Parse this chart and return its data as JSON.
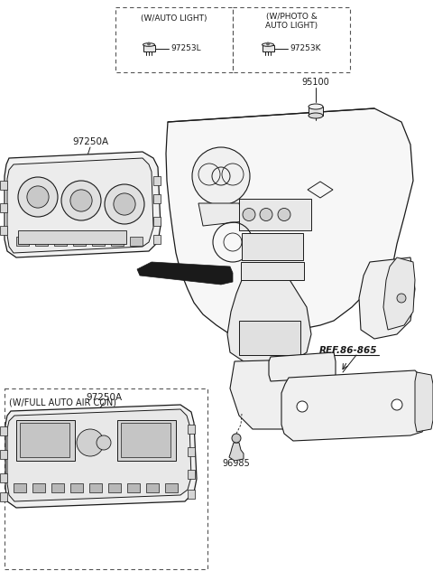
{
  "background_color": "#ffffff",
  "line_color": "#1a1a1a",
  "dashed_box_color": "#555555",
  "text_color": "#1a1a1a",
  "figsize": [
    4.8,
    6.42
  ],
  "dpi": 100,
  "labels": {
    "auto_light": "(W/AUTO LIGHT)",
    "photo_light": "(W/PHOTO &\nAUTO LIGHT)",
    "part_97253L": "97253L",
    "part_97253K": "97253K",
    "part_95100": "95100",
    "part_97250A": "97250A",
    "part_97250A_alt": "97250A",
    "part_96985": "96985",
    "ref": "REF.86-865",
    "full_auto": "(W/FULL AUTO AIR CON)"
  }
}
